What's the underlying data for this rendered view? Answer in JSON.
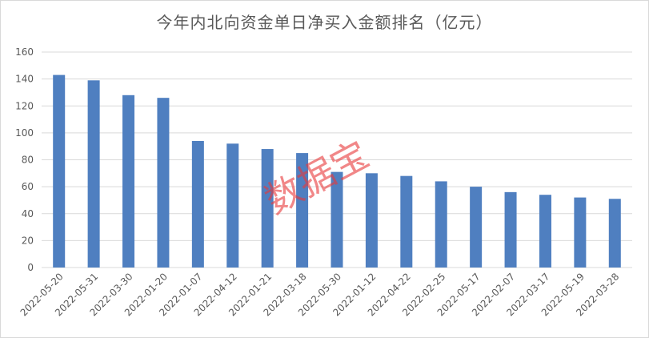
{
  "chart_data": {
    "type": "bar",
    "title": "今年内北向资金单日净买入金额排名（亿元）",
    "categories": [
      "2022-05-20",
      "2022-05-31",
      "2022-03-30",
      "2022-01-20",
      "2022-01-07",
      "2022-04-12",
      "2022-01-21",
      "2022-03-18",
      "2022-05-30",
      "2022-01-12",
      "2022-04-22",
      "2022-02-25",
      "2022-05-17",
      "2022-02-07",
      "2022-03-17",
      "2022-05-19",
      "2022-03-28"
    ],
    "values": [
      143,
      139,
      128,
      126,
      94,
      92,
      88,
      85,
      71,
      70,
      68,
      64,
      60,
      56,
      54,
      52,
      51
    ],
    "ylim": [
      0,
      160
    ],
    "yticks": [
      0,
      20,
      40,
      60,
      80,
      100,
      120,
      140,
      160
    ],
    "grid": true,
    "bar_color": "#4f7fc0",
    "grid_color": "#d9d9d9"
  },
  "watermark": "数据宝"
}
